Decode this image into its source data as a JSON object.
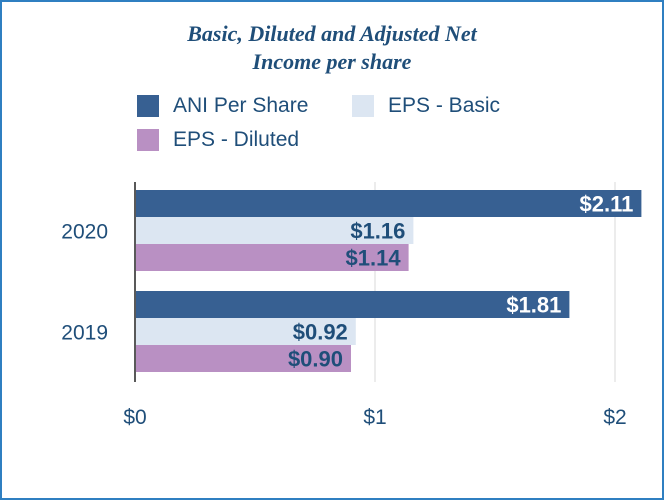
{
  "chart_data": {
    "type": "bar",
    "orientation": "horizontal",
    "title": "Basic, Diluted and Adjusted Net Income per share",
    "title_lines": [
      "Basic, Diluted and Adjusted Net",
      "Income per share"
    ],
    "categories": [
      "2020",
      "2019"
    ],
    "series": [
      {
        "name": "ANI Per Share",
        "color": "#376092",
        "label_color": "#ffffff",
        "values": [
          2.11,
          1.81
        ],
        "labels": [
          "$2.11",
          "$1.81"
        ]
      },
      {
        "name": "EPS - Basic",
        "color": "#dce6f2",
        "label_color": "#1f4e79",
        "values": [
          1.16,
          0.92
        ],
        "labels": [
          "$1.16",
          "$0.92"
        ]
      },
      {
        "name": "EPS - Diluted",
        "color": "#b990c3",
        "label_color": "#1f4e79",
        "values": [
          1.14,
          0.9
        ],
        "labels": [
          "$1.14",
          "$0.90"
        ]
      }
    ],
    "xlim": [
      0,
      2
    ],
    "xticks": [
      0,
      1,
      2
    ],
    "xtick_labels": [
      "$0",
      "$1",
      "$2"
    ],
    "grid": true,
    "legend_placement": "top-left",
    "xlabel": "",
    "ylabel": ""
  }
}
